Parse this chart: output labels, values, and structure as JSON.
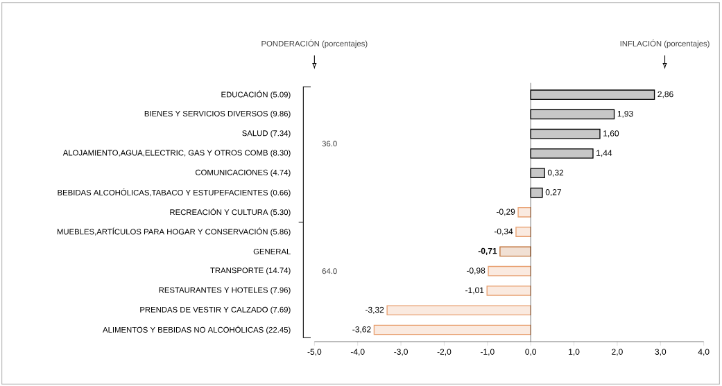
{
  "chart_data": {
    "type": "bar",
    "orientation": "horizontal",
    "categories": [
      "EDUCACIÓN (5.09)",
      "BIENES Y SERVICIOS DIVERSOS (9.86)",
      "SALUD (7.34)",
      "ALOJAMIENTO,AGUA,ELECTRIC, GAS Y OTROS COMB (8.30)",
      "COMUNICACIONES (4.74)",
      "BEBIDAS ALCOHÓLICAS,TABACO Y ESTUPEFACIENTES (0.66)",
      "RECREACIÓN Y CULTURA (5.30)",
      "MUEBLES,ARTÍCULOS PARA HOGAR Y CONSERVACIÓN (5.86)",
      "GENERAL",
      "TRANSPORTE (14.74)",
      "RESTAURANTES Y HOTELES (7.96)",
      "PRENDAS DE VESTIR Y CALZADO (7.69)",
      "ALIMENTOS Y BEBIDAS NO ALCOHÓLICAS (22.45)"
    ],
    "values": [
      2.86,
      1.93,
      1.6,
      1.44,
      0.32,
      0.27,
      -0.29,
      -0.34,
      -0.71,
      -0.98,
      -1.01,
      -3.32,
      -3.62
    ],
    "value_labels": [
      "2,86",
      "1,93",
      "1,60",
      "1,44",
      "0,32",
      "0,27",
      "-0,29",
      "-0,34",
      "**-0,71**",
      "-0,98",
      "-1,01",
      "-3,32",
      "-3,62"
    ],
    "colors": [
      "#000000",
      "#000000",
      "#000000",
      "#000000",
      "#000000",
      "#000000",
      "#e8a070",
      "#e8a070",
      "#c0733a",
      "#e8a070",
      "#e8a070",
      "#e8a070",
      "#e8a070"
    ],
    "xlim": [
      -5,
      4
    ],
    "xticks": [
      {
        "value": -5,
        "label": "-5,0"
      },
      {
        "value": -4,
        "label": "-4,0"
      },
      {
        "value": -3,
        "label": "-3,0"
      },
      {
        "value": -2,
        "label": "-2,0"
      },
      {
        "value": -1,
        "label": "-1,0"
      },
      {
        "value": 0,
        "label": "0,0"
      },
      {
        "value": 1,
        "label": "1,0"
      },
      {
        "value": 2,
        "label": "2,0"
      },
      {
        "value": 3,
        "label": "3,0"
      },
      {
        "value": 4,
        "label": "4,0"
      }
    ],
    "annotations": [
      "PONDERACIÓN (porcentajes)",
      "INFLACIÓN (porcentajes)",
      "36.0",
      "64.0"
    ],
    "ref_lines": [
      {
        "axis": "x",
        "value": 0,
        "color": "#000000"
      }
    ]
  }
}
